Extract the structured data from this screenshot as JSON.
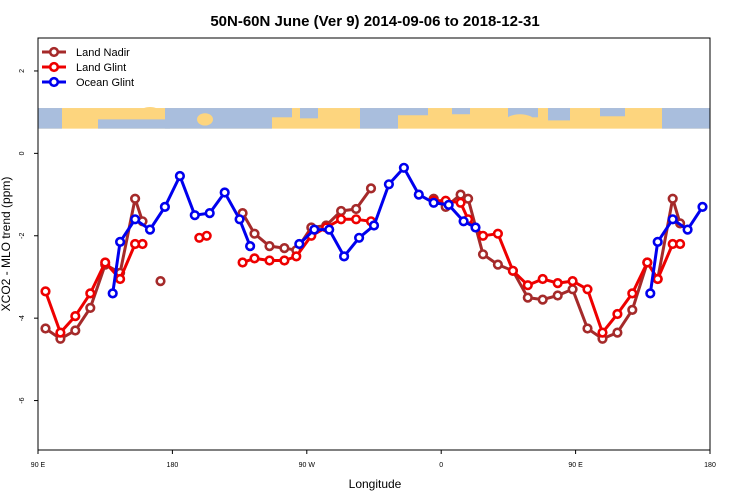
{
  "chart_data": {
    "type": "line",
    "title": "50N-60N June (Ver 9)   2014-09-06 to 2018-12-31",
    "xlabel": "Longitude",
    "ylabel": "XCO2 - MLO trend (ppm)",
    "xlim": [
      90,
      540
    ],
    "ylim": [
      -7.2,
      2.8
    ],
    "x_ticks": [
      {
        "value": 90,
        "label": "90 E"
      },
      {
        "value": 180,
        "label": "180"
      },
      {
        "value": 270,
        "label": "90 W"
      },
      {
        "value": 360,
        "label": "0"
      },
      {
        "value": 450,
        "label": "90 E"
      },
      {
        "value": 540,
        "label": "180"
      }
    ],
    "y_ticks": [
      {
        "value": -6,
        "label": "-6"
      },
      {
        "value": -4,
        "label": "-4"
      },
      {
        "value": -2,
        "label": "-2"
      },
      {
        "value": 0,
        "label": "0"
      },
      {
        "value": 2,
        "label": "2"
      }
    ],
    "legend_position": "top-left",
    "grid": false,
    "map_strip": {
      "y_range": [
        0.6,
        1.1
      ],
      "land_color": "#FDD57E",
      "ocean_color": "#A9BEDD"
    },
    "series": [
      {
        "name": "Land Nadir",
        "color": "#A52A2A",
        "segments": [
          [
            [
              95,
              -4.25
            ],
            [
              105,
              -4.5
            ],
            [
              115,
              -4.3
            ],
            [
              125,
              -3.75
            ],
            [
              135,
              -2.7
            ],
            [
              145,
              -2.9
            ],
            [
              155,
              -1.1
            ],
            [
              160,
              -1.65
            ]
          ],
          [
            [
              172,
              -3.1
            ]
          ],
          [
            [
              227,
              -1.45
            ],
            [
              235,
              -1.95
            ],
            [
              245,
              -2.25
            ],
            [
              255,
              -2.3
            ],
            [
              263,
              -2.35
            ],
            [
              273,
              -1.8
            ],
            [
              283,
              -1.75
            ],
            [
              293,
              -1.4
            ],
            [
              303,
              -1.35
            ],
            [
              313,
              -0.85
            ]
          ],
          [
            [
              355,
              -1.1
            ],
            [
              363,
              -1.3
            ],
            [
              373,
              -1.0
            ],
            [
              378,
              -1.1
            ],
            [
              388,
              -2.45
            ],
            [
              398,
              -2.7
            ],
            [
              408,
              -2.85
            ],
            [
              418,
              -3.5
            ],
            [
              428,
              -3.55
            ],
            [
              438,
              -3.45
            ],
            [
              448,
              -3.3
            ],
            [
              458,
              -4.25
            ],
            [
              468,
              -4.5
            ],
            [
              478,
              -4.35
            ],
            [
              488,
              -3.8
            ],
            [
              498,
              -2.65
            ],
            [
              505,
              -3.05
            ],
            [
              515,
              -1.1
            ],
            [
              520,
              -1.7
            ]
          ]
        ]
      },
      {
        "name": "Land Glint",
        "color": "#EE0000",
        "segments": [
          [
            [
              95,
              -3.35
            ],
            [
              105,
              -4.35
            ],
            [
              115,
              -3.95
            ],
            [
              125,
              -3.4
            ],
            [
              135,
              -2.65
            ],
            [
              145,
              -3.05
            ],
            [
              155,
              -2.2
            ],
            [
              160,
              -2.2
            ]
          ],
          [
            [
              198,
              -2.05
            ],
            [
              203,
              -2.0
            ]
          ],
          [
            [
              227,
              -2.65
            ],
            [
              235,
              -2.55
            ],
            [
              245,
              -2.6
            ],
            [
              255,
              -2.6
            ],
            [
              263,
              -2.5
            ],
            [
              273,
              -2.0
            ],
            [
              283,
              -1.8
            ],
            [
              293,
              -1.6
            ],
            [
              303,
              -1.6
            ],
            [
              313,
              -1.65
            ]
          ],
          [
            [
              355,
              -1.15
            ],
            [
              363,
              -1.15
            ],
            [
              373,
              -1.2
            ],
            [
              378,
              -1.6
            ],
            [
              388,
              -2.0
            ],
            [
              398,
              -1.95
            ],
            [
              408,
              -2.85
            ],
            [
              418,
              -3.2
            ],
            [
              428,
              -3.05
            ],
            [
              438,
              -3.15
            ],
            [
              448,
              -3.1
            ],
            [
              458,
              -3.3
            ],
            [
              468,
              -4.35
            ],
            [
              478,
              -3.9
            ],
            [
              488,
              -3.4
            ],
            [
              498,
              -2.65
            ],
            [
              505,
              -3.05
            ],
            [
              515,
              -2.2
            ],
            [
              520,
              -2.2
            ]
          ]
        ]
      },
      {
        "name": "Ocean Glint",
        "color": "#0000EE",
        "segments": [
          [
            [
              140,
              -3.4
            ],
            [
              145,
              -2.15
            ],
            [
              155,
              -1.6
            ],
            [
              165,
              -1.85
            ],
            [
              175,
              -1.3
            ],
            [
              185,
              -0.55
            ],
            [
              195,
              -1.5
            ],
            [
              205,
              -1.45
            ],
            [
              215,
              -0.95
            ],
            [
              225,
              -1.6
            ],
            [
              232,
              -2.25
            ]
          ],
          [
            [
              265,
              -2.2
            ],
            [
              275,
              -1.85
            ],
            [
              285,
              -1.85
            ],
            [
              295,
              -2.5
            ],
            [
              305,
              -2.05
            ],
            [
              315,
              -1.75
            ],
            [
              325,
              -0.75
            ],
            [
              335,
              -0.35
            ],
            [
              345,
              -1.0
            ],
            [
              355,
              -1.2
            ],
            [
              365,
              -1.25
            ],
            [
              375,
              -1.65
            ],
            [
              383,
              -1.8
            ]
          ],
          [
            [
              500,
              -3.4
            ],
            [
              505,
              -2.15
            ],
            [
              515,
              -1.6
            ],
            [
              525,
              -1.85
            ],
            [
              535,
              -1.3
            ]
          ]
        ]
      }
    ]
  }
}
